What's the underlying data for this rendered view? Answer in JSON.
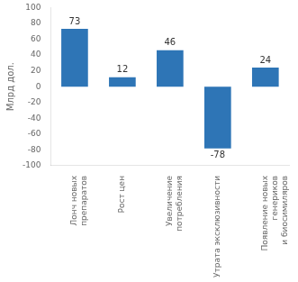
{
  "chart_data": {
    "type": "bar",
    "categories": [
      "Лонч новых\nпрепаратов",
      "Рост цен",
      "Увеличение\nпотребления",
      "Утрата эксклюзивности",
      "Появление новых\nгенериков\nи биосимиляров"
    ],
    "values": [
      73,
      12,
      46,
      -78,
      24
    ],
    "color": "#2E75B6",
    "ylabel": "Млрд дол.",
    "ylim": [
      -100,
      100
    ],
    "yticks": [
      -100,
      -80,
      -60,
      -40,
      -20,
      0,
      20,
      40,
      60,
      80,
      100
    ],
    "grid": false,
    "data_labels": true
  }
}
